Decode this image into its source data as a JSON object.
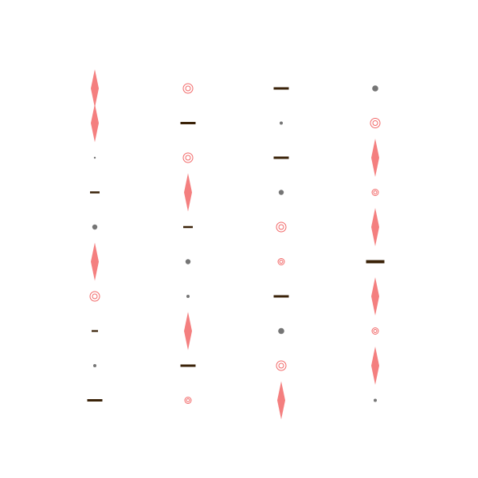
{
  "colors": {
    "background": "#ffffff",
    "diamond": "#f26969",
    "ring": "#f26969",
    "dot": "#666666",
    "bar": "#3a2208"
  },
  "grid": {
    "columns": 4,
    "rows": 10
  },
  "columns": [
    {
      "glyphs": [
        {
          "shape": "diamond",
          "size": "large"
        },
        {
          "shape": "diamond",
          "size": "large"
        },
        {
          "shape": "dot",
          "size": "tiny"
        },
        {
          "shape": "bar",
          "size": "medium"
        },
        {
          "shape": "dot",
          "size": "medium"
        },
        {
          "shape": "diamond",
          "size": "large"
        },
        {
          "shape": "ring",
          "size": "medium"
        },
        {
          "shape": "bar",
          "size": "small"
        },
        {
          "shape": "dot",
          "size": "small"
        },
        {
          "shape": "bar",
          "size": "large"
        }
      ]
    },
    {
      "glyphs": [
        {
          "shape": "ring",
          "size": "medium"
        },
        {
          "shape": "bar",
          "size": "large"
        },
        {
          "shape": "ring",
          "size": "medium"
        },
        {
          "shape": "diamond",
          "size": "large"
        },
        {
          "shape": "bar",
          "size": "medium"
        },
        {
          "shape": "dot",
          "size": "medium"
        },
        {
          "shape": "dot",
          "size": "small"
        },
        {
          "shape": "diamond",
          "size": "large"
        },
        {
          "shape": "bar",
          "size": "large"
        },
        {
          "shape": "ring",
          "size": "small"
        }
      ]
    },
    {
      "glyphs": [
        {
          "shape": "bar",
          "size": "large"
        },
        {
          "shape": "dot",
          "size": "small"
        },
        {
          "shape": "bar",
          "size": "large"
        },
        {
          "shape": "dot",
          "size": "medium"
        },
        {
          "shape": "ring",
          "size": "medium"
        },
        {
          "shape": "ring",
          "size": "small"
        },
        {
          "shape": "bar",
          "size": "large"
        },
        {
          "shape": "dot",
          "size": "large"
        },
        {
          "shape": "ring",
          "size": "medium"
        },
        {
          "shape": "diamond",
          "size": "large"
        }
      ]
    },
    {
      "glyphs": [
        {
          "shape": "dot",
          "size": "large"
        },
        {
          "shape": "ring",
          "size": "medium"
        },
        {
          "shape": "diamond",
          "size": "large"
        },
        {
          "shape": "ring",
          "size": "small"
        },
        {
          "shape": "diamond",
          "size": "large"
        },
        {
          "shape": "bar",
          "size": "xlarge"
        },
        {
          "shape": "diamond",
          "size": "large"
        },
        {
          "shape": "ring",
          "size": "small"
        },
        {
          "shape": "diamond",
          "size": "large"
        },
        {
          "shape": "dot",
          "size": "small"
        }
      ]
    }
  ]
}
